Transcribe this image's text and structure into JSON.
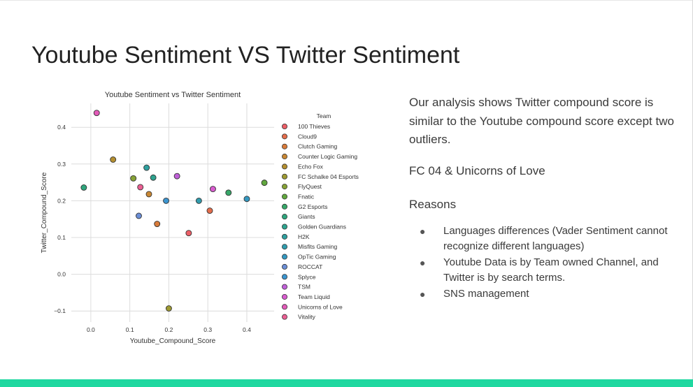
{
  "slide": {
    "title": "Youtube Sentiment VS Twitter Sentiment",
    "summary": "Our analysis shows Twitter compound score is similar to the Youtube compound score except two outliers.",
    "outliers": "FC 04 & Unicorns of Love",
    "reasons_heading": "Reasons",
    "reasons": [
      "Languages differences (Vader Sentiment cannot recognize different languages)",
      "Youtube Data is by Team owned Channel, and Twitter is by search terms.",
      "SNS management"
    ],
    "bullet_glyph": "●",
    "accent_color": "#1fd8a0"
  },
  "chart_data": {
    "type": "scatter",
    "title": "Youtube Sentiment vs Twitter Sentiment",
    "xlabel": "Youtube_Compound_Score",
    "ylabel": "Twitter_Compound_Score",
    "xlim": [
      -0.05,
      0.47
    ],
    "ylim": [
      -0.13,
      0.465
    ],
    "xticks": [
      0.0,
      0.1,
      0.2,
      0.3,
      0.4
    ],
    "xtick_labels": [
      "0.0",
      "0.1",
      "0.2",
      "0.3",
      "0.4"
    ],
    "yticks": [
      -0.1,
      0.0,
      0.1,
      0.2,
      0.3,
      0.4
    ],
    "ytick_labels": [
      "−0.1",
      "0.0",
      "0.1",
      "0.2",
      "0.3",
      "0.4"
    ],
    "grid": true,
    "legend_title": "Team",
    "legend_position": "right",
    "series": [
      {
        "name": "100 Thieves",
        "x": 0.251,
        "y": 0.112,
        "color": "#ec5f67"
      },
      {
        "name": "Cloud9",
        "x": 0.305,
        "y": 0.173,
        "color": "#e46d4c"
      },
      {
        "name": "Clutch Gaming",
        "x": 0.17,
        "y": 0.137,
        "color": "#d87b3a"
      },
      {
        "name": "Counter Logic Gaming",
        "x": 0.149,
        "y": 0.218,
        "color": "#c88734"
      },
      {
        "name": "Echo Fox",
        "x": 0.057,
        "y": 0.312,
        "color": "#b48f30"
      },
      {
        "name": "FC Schalke 04 Esports",
        "x": 0.2,
        "y": -0.093,
        "color": "#9e9a32"
      },
      {
        "name": "FlyQuest",
        "x": 0.109,
        "y": 0.261,
        "color": "#86a236"
      },
      {
        "name": "Fnatic",
        "x": 0.445,
        "y": 0.249,
        "color": "#61a83e"
      },
      {
        "name": "G2 Esports",
        "x": 0.353,
        "y": 0.222,
        "color": "#37a869"
      },
      {
        "name": "Giants",
        "x": -0.018,
        "y": 0.236,
        "color": "#2fa67d"
      },
      {
        "name": "Golden Guardians",
        "x": 0.16,
        "y": 0.263,
        "color": "#2ea48f"
      },
      {
        "name": "H2K",
        "x": 0.143,
        "y": 0.29,
        "color": "#2fa09f"
      },
      {
        "name": "Misfits Gaming",
        "x": 0.277,
        "y": 0.2,
        "color": "#319cad"
      },
      {
        "name": "OpTic Gaming",
        "x": 0.4,
        "y": 0.205,
        "color": "#3498c0"
      },
      {
        "name": "ROCCAT",
        "x": 0.123,
        "y": 0.159,
        "color": "#6b8ed6"
      },
      {
        "name": "Splyce",
        "x": 0.193,
        "y": 0.2,
        "color": "#3c95d0"
      },
      {
        "name": "TSM",
        "x": 0.221,
        "y": 0.267,
        "color": "#c060d8"
      },
      {
        "name": "Team Liquid",
        "x": 0.313,
        "y": 0.232,
        "color": "#d85ccf"
      },
      {
        "name": "Unicorns of Love",
        "x": 0.015,
        "y": 0.439,
        "color": "#e25ab8"
      },
      {
        "name": "Vitality",
        "x": 0.127,
        "y": 0.237,
        "color": "#ea5f93"
      }
    ]
  }
}
